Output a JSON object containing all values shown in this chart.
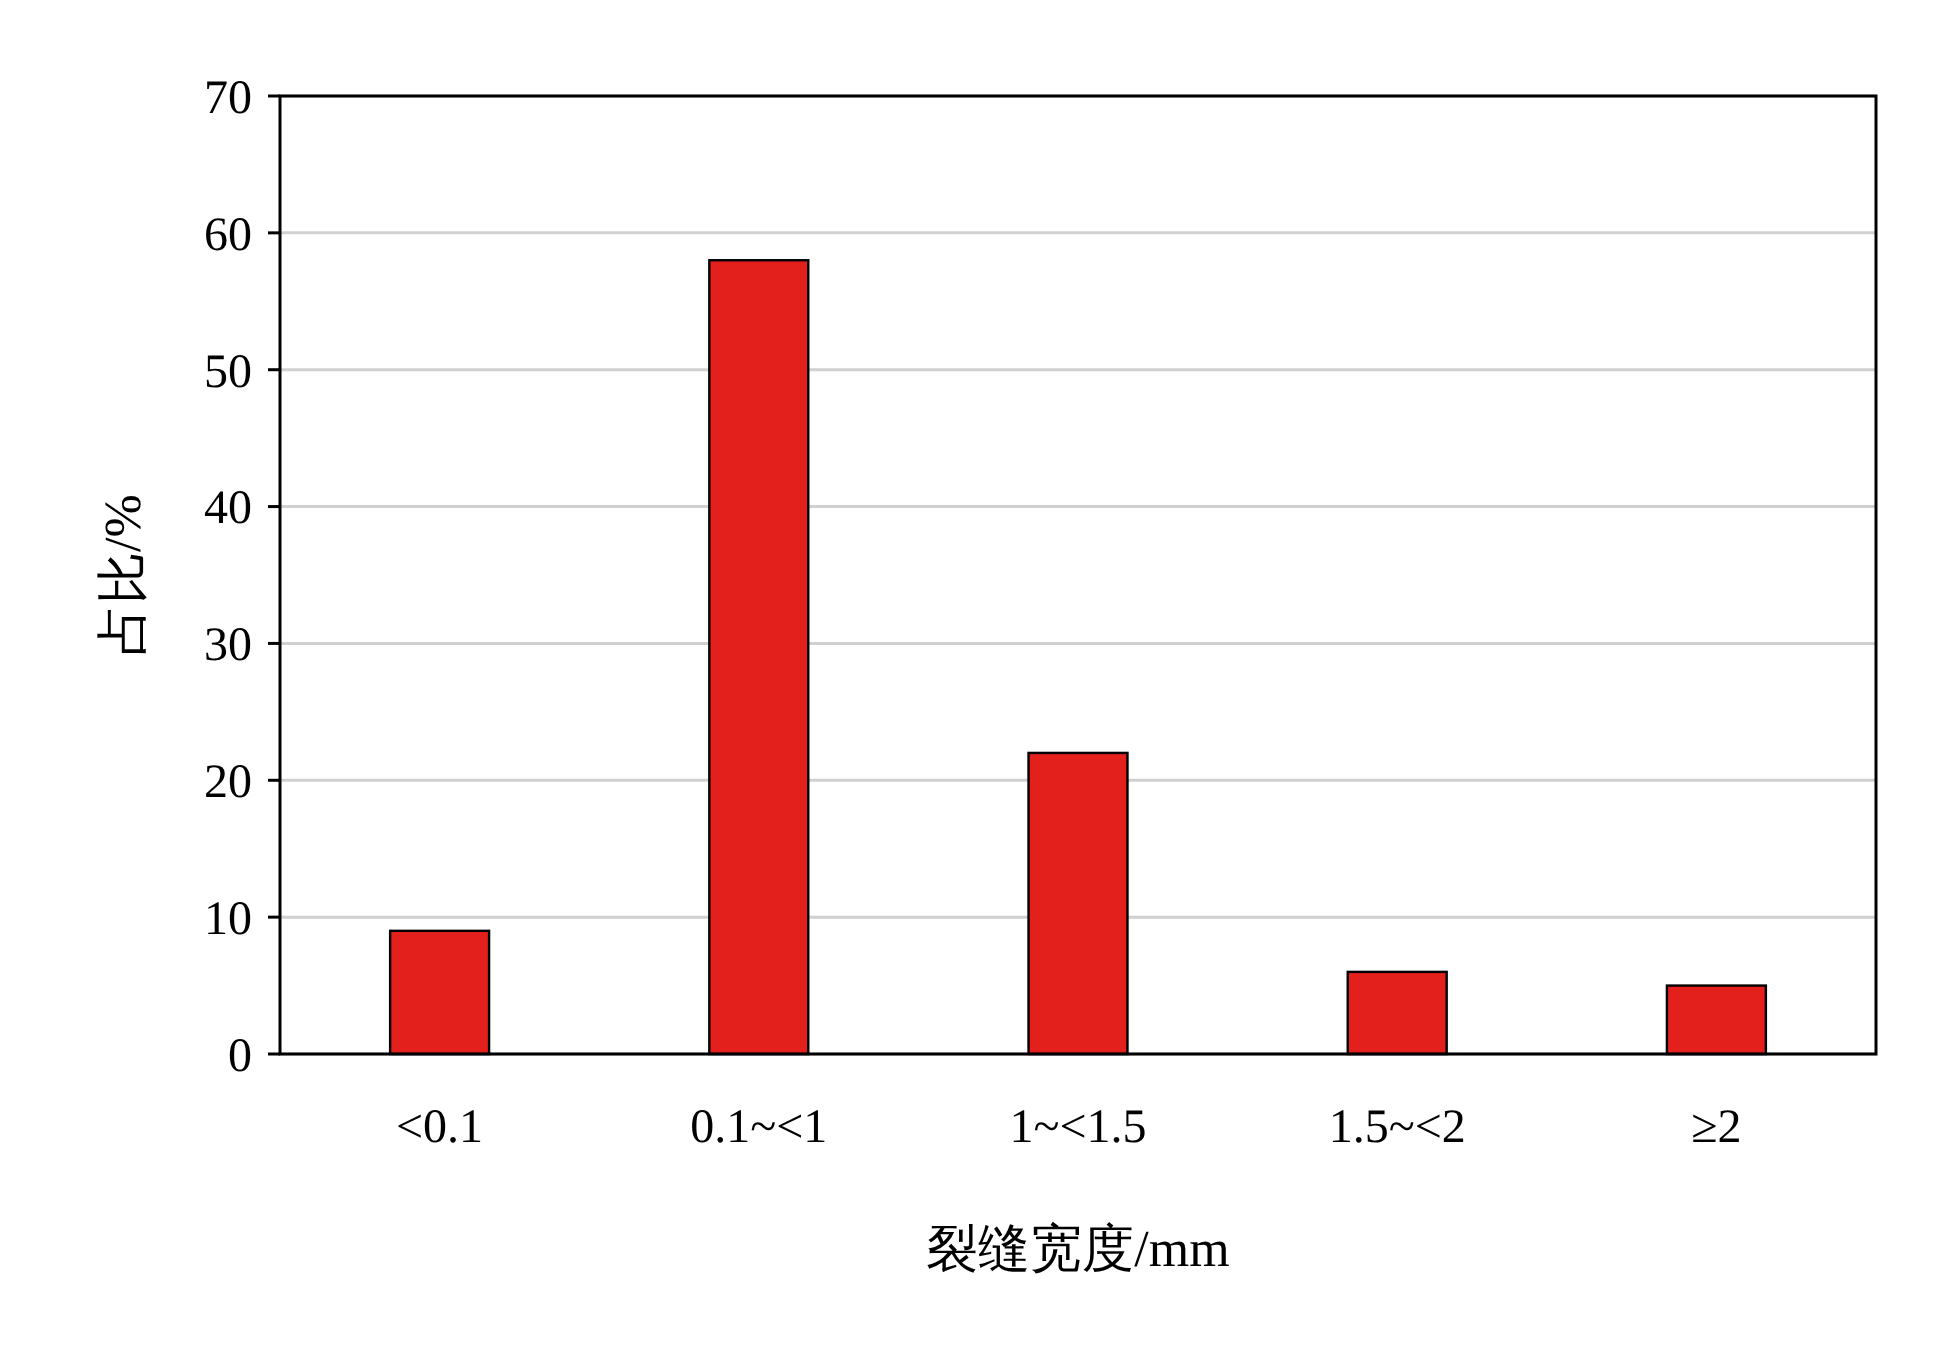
{
  "chart_data": {
    "type": "bar",
    "xlabel": "裂缝宽度/mm",
    "ylabel": "占比/%",
    "categories": [
      "<0.1",
      "0.1~<1",
      "1~<1.5",
      "1.5~<2",
      "≥2"
    ],
    "values": [
      9,
      58,
      22,
      6,
      5
    ],
    "color": "#e3201b",
    "ylim": [
      0,
      70
    ],
    "yticks": [
      0,
      10,
      20,
      30,
      40,
      50,
      60,
      70
    ],
    "grid": "y"
  }
}
